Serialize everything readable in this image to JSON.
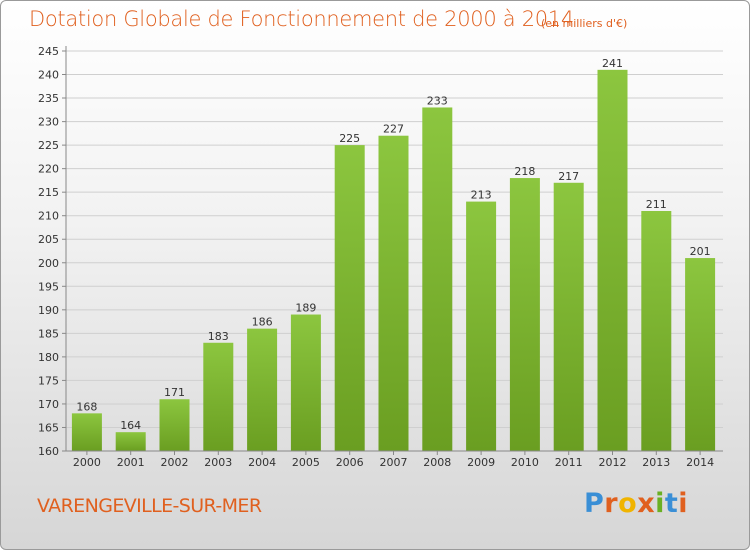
{
  "chart_data": {
    "type": "bar",
    "title": "Dotation Globale de Fonctionnement de 2000 à 2014",
    "subtitle": "(en milliers d'€)",
    "categories": [
      "2000",
      "2001",
      "2002",
      "2003",
      "2004",
      "2005",
      "2006",
      "2007",
      "2008",
      "2009",
      "2010",
      "2011",
      "2012",
      "2013",
      "2014"
    ],
    "values": [
      168,
      164,
      171,
      183,
      186,
      189,
      225,
      227,
      233,
      213,
      218,
      217,
      241,
      211,
      201
    ],
    "ylim": [
      160,
      245
    ],
    "yticks": [
      160,
      165,
      170,
      175,
      180,
      185,
      190,
      195,
      200,
      205,
      210,
      215,
      220,
      225,
      230,
      235,
      240,
      245
    ],
    "grid": true,
    "bar_color": "#8cc63f",
    "bar_color_dark": "#6a9e21"
  },
  "footer": {
    "town": "VARENGEVILLE-SUR-MER",
    "logo_text": "Proxiti",
    "logo_colors": [
      "#3a8fd6",
      "#e0601f",
      "#f0b400",
      "#e0601f",
      "#6ab023",
      "#3a8fd6",
      "#e0601f"
    ]
  },
  "colors": {
    "accent": "#e0601f"
  }
}
